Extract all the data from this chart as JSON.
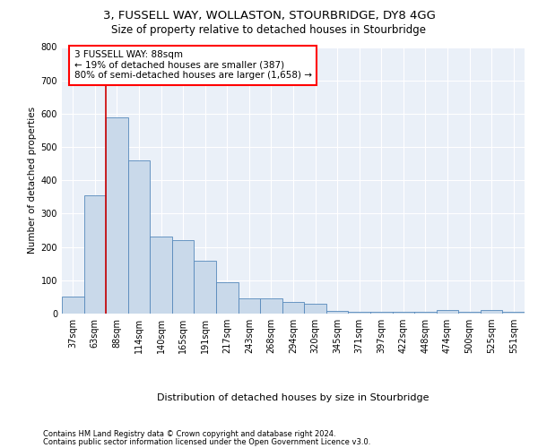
{
  "title1": "3, FUSSELL WAY, WOLLASTON, STOURBRIDGE, DY8 4GG",
  "title2": "Size of property relative to detached houses in Stourbridge",
  "xlabel": "Distribution of detached houses by size in Stourbridge",
  "ylabel": "Number of detached properties",
  "footer1": "Contains HM Land Registry data © Crown copyright and database right 2024.",
  "footer2": "Contains public sector information licensed under the Open Government Licence v3.0.",
  "annotation_line1": "3 FUSSELL WAY: 88sqm",
  "annotation_line2": "← 19% of detached houses are smaller (387)",
  "annotation_line3": "80% of semi-detached houses are larger (1,658) →",
  "bar_color": "#c9d9ea",
  "bar_edge_color": "#5588bb",
  "marker_color": "#cc0000",
  "background_color": "#eaf0f8",
  "grid_color": "#ffffff",
  "categories": [
    "37sqm",
    "63sqm",
    "88sqm",
    "114sqm",
    "140sqm",
    "165sqm",
    "191sqm",
    "217sqm",
    "243sqm",
    "268sqm",
    "294sqm",
    "320sqm",
    "345sqm",
    "371sqm",
    "397sqm",
    "422sqm",
    "448sqm",
    "474sqm",
    "500sqm",
    "525sqm",
    "551sqm"
  ],
  "values": [
    50,
    355,
    590,
    460,
    230,
    220,
    160,
    95,
    45,
    45,
    35,
    30,
    8,
    5,
    5,
    5,
    5,
    10,
    5,
    10,
    5
  ],
  "ylim": [
    0,
    800
  ],
  "yticks": [
    0,
    100,
    200,
    300,
    400,
    500,
    600,
    700,
    800
  ],
  "title1_fontsize": 9.5,
  "title2_fontsize": 8.5,
  "ylabel_fontsize": 7.5,
  "xlabel_fontsize": 8.0,
  "tick_fontsize": 7.0,
  "footer_fontsize": 6.0,
  "annot_fontsize": 7.5
}
